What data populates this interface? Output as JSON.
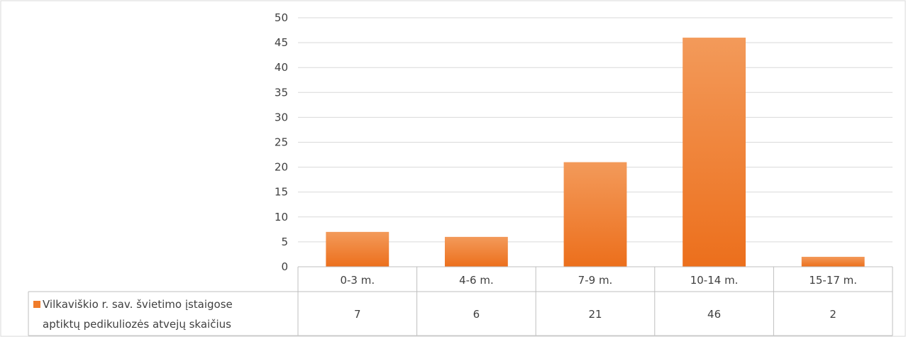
{
  "chart_data": {
    "type": "bar",
    "categories": [
      "0-3 m.",
      "4-6 m.",
      "7-9 m.",
      "10-14 m.",
      "15-17 m."
    ],
    "series": [
      {
        "name": "Vilkaviškio r. sav. švietimo įstaigose aptiktų pedikuliozės atvejų skaičius",
        "name_lines": [
          "Vilkaviškio r. sav. švietimo įstaigose",
          "aptiktų pedikuliozės atvejų skaičius"
        ],
        "values": [
          7,
          6,
          21,
          46,
          2
        ]
      }
    ],
    "y_ticks": [
      "0",
      "5",
      "10",
      "15",
      "20",
      "25",
      "30",
      "35",
      "40",
      "45",
      "50"
    ],
    "value_labels": [
      "7",
      "6",
      "21",
      "46",
      "2"
    ],
    "ylim": [
      0,
      50
    ],
    "grid": true,
    "data_table": true,
    "legend": "data-table-left",
    "bar_color": "#f07c2a",
    "bar_color_top": "#f39a5a",
    "bar_color_bottom": "#ec6f1c"
  }
}
